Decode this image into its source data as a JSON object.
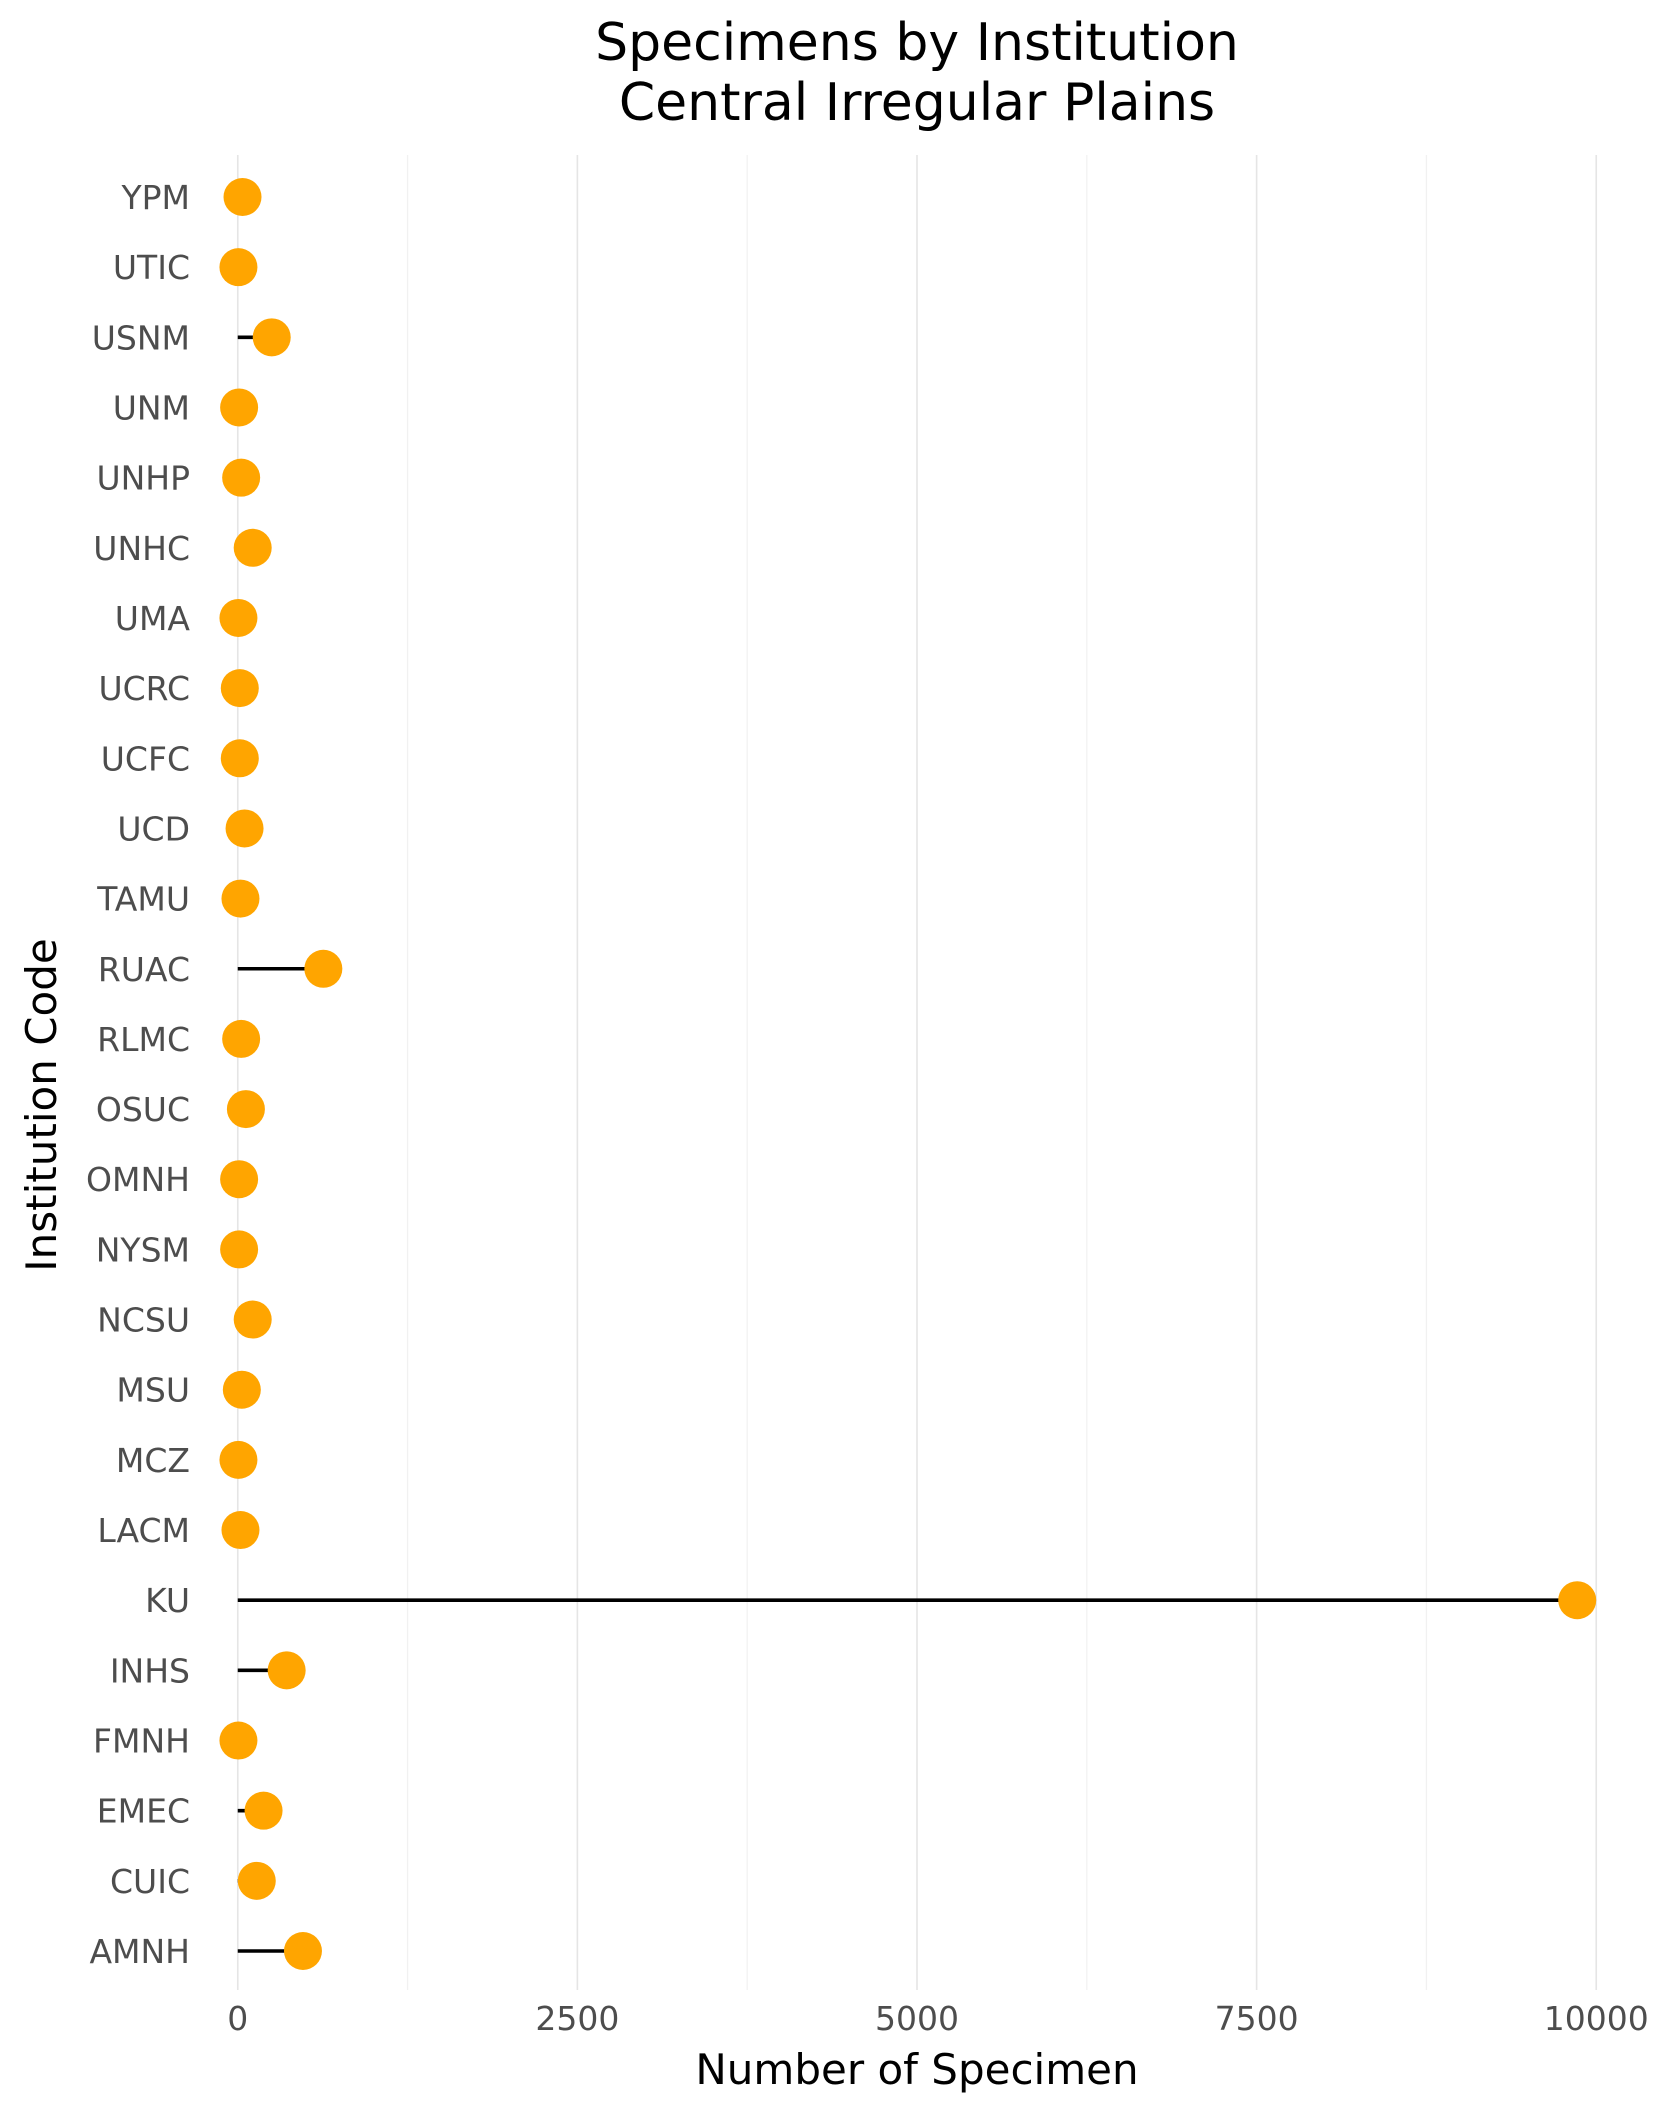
{
  "chart_data": {
    "type": "scatter",
    "title": "Specimens by Institution",
    "subtitle": "Central Irregular Plains",
    "xlabel": "Number of Specimen",
    "ylabel": "Institution Code",
    "xlim": [
      -300,
      10300
    ],
    "x_ticks": [
      0,
      2500,
      5000,
      7500,
      10000
    ],
    "x_tick_labels": [
      "0",
      "2500",
      "5000",
      "7500",
      "10000"
    ],
    "grid": "vertical",
    "legend": "none",
    "point_color": "#FFA500",
    "stem_color": "#000000",
    "categories": [
      "AMNH",
      "CUIC",
      "EMEC",
      "FMNH",
      "INHS",
      "KU",
      "LACM",
      "MCZ",
      "MSU",
      "NCSU",
      "NYSM",
      "OMNH",
      "OSUC",
      "RLMC",
      "RUAC",
      "TAMU",
      "UCD",
      "UCFC",
      "UCRC",
      "UMA",
      "UNHC",
      "UNHP",
      "UNM",
      "USNM",
      "UTIC",
      "YPM"
    ],
    "values": [
      480,
      140,
      190,
      5,
      360,
      9860,
      20,
      5,
      30,
      110,
      10,
      10,
      60,
      25,
      630,
      20,
      50,
      15,
      15,
      5,
      110,
      25,
      10,
      250,
      5,
      35
    ]
  }
}
